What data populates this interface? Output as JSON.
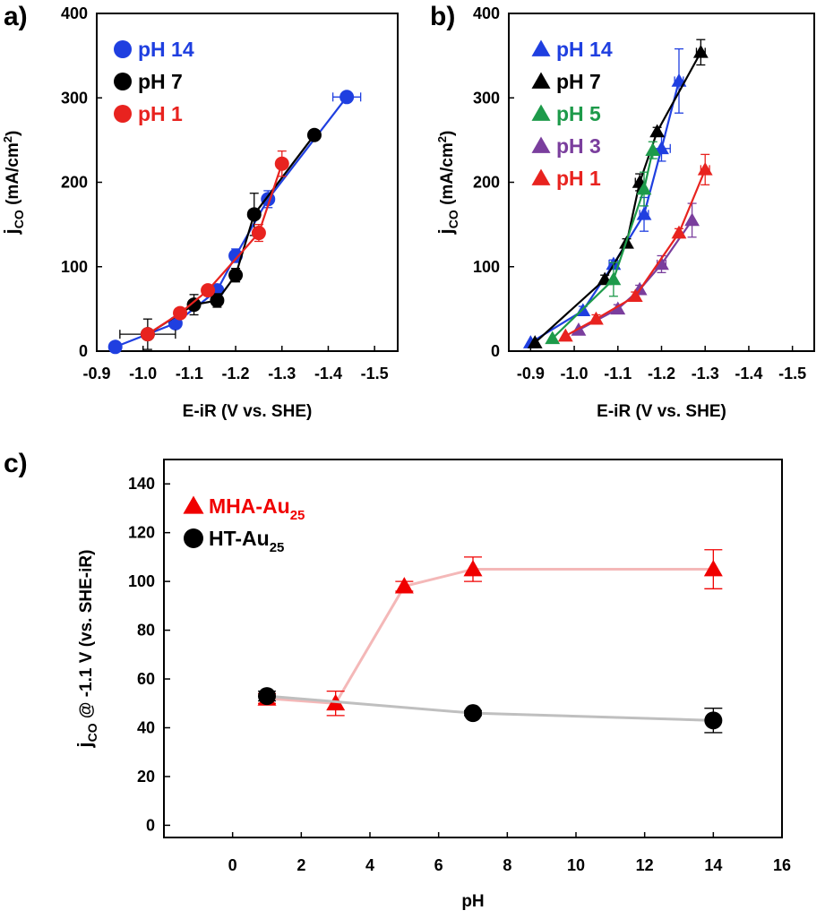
{
  "chart_data": [
    {
      "id": "a",
      "panel_label": "a)",
      "type": "scatter",
      "xlabel": "E-iR (V vs. SHE)",
      "ylabel_main": "j",
      "ylabel_sub": "CO",
      "ylabel_rest": " (mA/cm",
      "ylabel_sup": "2",
      "ylabel_end": ")",
      "xlim": [
        -0.9,
        -1.55
      ],
      "ylim": [
        0,
        400
      ],
      "xticks": [
        -0.9,
        -1.0,
        -1.1,
        -1.2,
        -1.3,
        -1.4,
        -1.5
      ],
      "xtick_labels": [
        "-0.9",
        "-1.0",
        "-1.1",
        "-1.2",
        "-1.3",
        "-1.4",
        "-1.5"
      ],
      "yticks": [
        0,
        100,
        200,
        300,
        400
      ],
      "ytick_labels": [
        "0",
        "100",
        "200",
        "300",
        "400"
      ],
      "legend_position": "top-left",
      "series": [
        {
          "name": "pH 14",
          "color": "#1f3fe0",
          "marker": "circle",
          "x": [
            -0.94,
            -1.07,
            -1.16,
            -1.2,
            -1.27,
            -1.44
          ],
          "y": [
            5,
            33,
            72,
            113,
            180,
            301
          ],
          "xerr": [
            0,
            0,
            0,
            0.01,
            0.01,
            0.03
          ],
          "yerr": [
            0,
            5,
            5,
            8,
            10,
            5
          ]
        },
        {
          "name": "pH 7",
          "color": "#000000",
          "marker": "circle",
          "x": [
            -1.01,
            -1.11,
            -1.16,
            -1.2,
            -1.24,
            -1.37
          ],
          "y": [
            20,
            55,
            60,
            90,
            162,
            256
          ],
          "xerr": [
            0.06,
            0.01,
            0.01,
            0,
            0.01,
            0
          ],
          "yerr": [
            18,
            12,
            8,
            8,
            25,
            5
          ]
        },
        {
          "name": "pH 1",
          "color": "#e8231f",
          "marker": "circle",
          "x": [
            -1.01,
            -1.08,
            -1.14,
            -1.25,
            -1.3
          ],
          "y": [
            20,
            45,
            72,
            140,
            222
          ],
          "xerr": [
            0,
            0,
            0,
            0.01,
            0
          ],
          "yerr": [
            5,
            5,
            5,
            10,
            15
          ]
        }
      ]
    },
    {
      "id": "b",
      "panel_label": "b)",
      "type": "scatter",
      "xlabel": "E-iR (V vs. SHE)",
      "ylabel_main": "j",
      "ylabel_sub": "CO",
      "ylabel_rest": " (mA/cm",
      "ylabel_sup": "2",
      "ylabel_end": ")",
      "xlim": [
        -0.85,
        -1.55
      ],
      "ylim": [
        0,
        400
      ],
      "xticks": [
        -0.9,
        -1.0,
        -1.1,
        -1.2,
        -1.3,
        -1.4,
        -1.5
      ],
      "xtick_labels": [
        "-0.9",
        "-1.0",
        "-1.1",
        "-1.2",
        "-1.3",
        "-1.4",
        "-1.5"
      ],
      "yticks": [
        0,
        100,
        200,
        300,
        400
      ],
      "ytick_labels": [
        "0",
        "100",
        "200",
        "300",
        "400"
      ],
      "legend_position": "top-left",
      "series": [
        {
          "name": "pH 14",
          "color": "#1f3fe0",
          "marker": "triangle",
          "x": [
            -0.9,
            -1.02,
            -1.09,
            -1.16,
            -1.2,
            -1.24
          ],
          "y": [
            10,
            48,
            103,
            162,
            240,
            320
          ],
          "xerr": [
            0,
            0,
            0.01,
            0.01,
            0.02,
            0.01
          ],
          "yerr": [
            0,
            5,
            5,
            20,
            15,
            38
          ]
        },
        {
          "name": "pH 7",
          "color": "#000000",
          "marker": "triangle",
          "x": [
            -0.91,
            -1.07,
            -1.12,
            -1.15,
            -1.19,
            -1.29
          ],
          "y": [
            10,
            85,
            128,
            200,
            260,
            354
          ],
          "xerr": [
            0,
            0,
            0,
            0.01,
            0,
            0.01
          ],
          "yerr": [
            0,
            5,
            5,
            10,
            5,
            15
          ]
        },
        {
          "name": "pH 5",
          "color": "#1d9a4a",
          "marker": "triangle",
          "x": [
            -0.95,
            -1.09,
            -1.16,
            -1.18
          ],
          "y": [
            15,
            85,
            192,
            238
          ],
          "xerr": [
            0,
            0,
            0,
            0
          ],
          "yerr": [
            0,
            20,
            20,
            10
          ]
        },
        {
          "name": "pH 3",
          "color": "#7a3e9d",
          "marker": "triangle",
          "x": [
            -1.01,
            -1.1,
            -1.15,
            -1.2,
            -1.27
          ],
          "y": [
            25,
            50,
            73,
            103,
            155
          ],
          "xerr": [
            0,
            0,
            0,
            0.01,
            0
          ],
          "yerr": [
            0,
            5,
            5,
            10,
            20
          ]
        },
        {
          "name": "pH 1",
          "color": "#e8231f",
          "marker": "triangle",
          "x": [
            -0.98,
            -1.05,
            -1.14,
            -1.24,
            -1.3
          ],
          "y": [
            18,
            38,
            65,
            140,
            215
          ],
          "xerr": [
            0,
            0,
            0,
            0,
            0.01
          ],
          "yerr": [
            0,
            5,
            5,
            5,
            18
          ]
        }
      ]
    },
    {
      "id": "c",
      "panel_label": "c)",
      "type": "line",
      "xlabel": "pH",
      "ylabel_main": "j",
      "ylabel_sub": "CO",
      "ylabel_rest": " @ -1.1 V (vs. SHE-iR)",
      "xlim": [
        -2,
        16
      ],
      "ylim": [
        -5,
        150
      ],
      "xticks": [
        0,
        2,
        4,
        6,
        8,
        10,
        12,
        14,
        16
      ],
      "xtick_labels": [
        "0",
        "2",
        "4",
        "6",
        "8",
        "10",
        "12",
        "14",
        "16"
      ],
      "yticks": [
        0,
        20,
        40,
        60,
        80,
        100,
        120,
        140
      ],
      "ytick_labels": [
        "0",
        "20",
        "40",
        "60",
        "80",
        "100",
        "120",
        "140"
      ],
      "legend_position": "top-left",
      "series": [
        {
          "name_main": "MHA-Au",
          "name_sub": "25",
          "color": "#f00000",
          "line_color": "#f4b8b8",
          "marker": "triangle",
          "x": [
            1,
            3,
            5,
            7,
            14
          ],
          "y": [
            52,
            50,
            98,
            105,
            105
          ],
          "yerr": [
            2,
            5,
            2,
            5,
            8
          ]
        },
        {
          "name_main": "HT-Au",
          "name_sub": "25",
          "color": "#000000",
          "line_color": "#bfbfbf",
          "marker": "circle",
          "x": [
            1,
            7,
            14
          ],
          "y": [
            53,
            46,
            43
          ],
          "yerr": [
            2,
            1,
            5
          ]
        }
      ]
    }
  ]
}
